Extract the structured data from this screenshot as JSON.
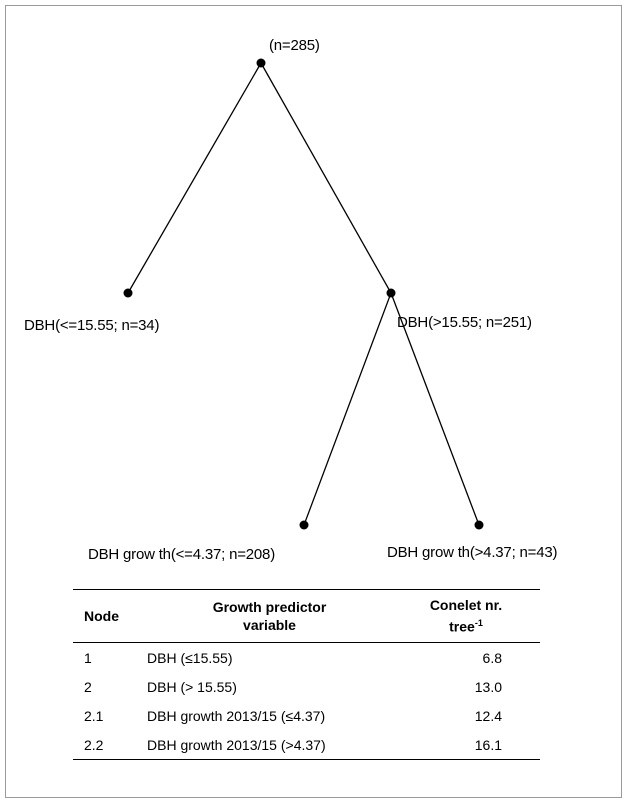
{
  "tree": {
    "root": {
      "label": "(n=285)"
    },
    "left": {
      "label": "DBH(<=15.55; n=34)"
    },
    "right": {
      "label": "DBH(>15.55; n=251)"
    },
    "right_left": {
      "label": "DBH grow th(<=4.37; n=208)"
    },
    "right_right": {
      "label": "DBH grow th(>4.37; n=43)"
    }
  },
  "table": {
    "headers": {
      "node": "Node",
      "variable_line1": "Growth predictor",
      "variable_line2": "variable",
      "cone_line1": "Conelet nr.",
      "cone_line2_base": "tree",
      "cone_line2_sup": "-1"
    },
    "rows": [
      {
        "node": "1",
        "variable": "DBH (≤15.55)",
        "cone": "6.8"
      },
      {
        "node": "2",
        "variable": "DBH (> 15.55)",
        "cone": "13.0"
      },
      {
        "node": "2.1",
        "variable": "DBH growth 2013/15 (≤4.37)",
        "cone": "12.4"
      },
      {
        "node": "2.2",
        "variable": "DBH growth 2013/15 (>4.37)",
        "cone": "16.1"
      }
    ]
  }
}
